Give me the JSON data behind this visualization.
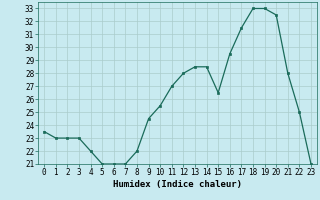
{
  "x": [
    0,
    1,
    2,
    3,
    4,
    5,
    6,
    7,
    8,
    9,
    10,
    11,
    12,
    13,
    14,
    15,
    16,
    17,
    18,
    19,
    20,
    21,
    22,
    23
  ],
  "y": [
    23.5,
    23.0,
    23.0,
    23.0,
    22.0,
    21.0,
    21.0,
    21.0,
    22.0,
    24.5,
    25.5,
    27.0,
    28.0,
    28.5,
    28.5,
    26.5,
    29.5,
    31.5,
    33.0,
    33.0,
    32.5,
    28.0,
    25.0,
    21.0
  ],
  "xlabel": "Humidex (Indice chaleur)",
  "ylabel": "",
  "xlim": [
    -0.5,
    23.5
  ],
  "ylim": [
    21,
    33.5
  ],
  "yticks": [
    21,
    22,
    23,
    24,
    25,
    26,
    27,
    28,
    29,
    30,
    31,
    32,
    33
  ],
  "xticks": [
    0,
    1,
    2,
    3,
    4,
    5,
    6,
    7,
    8,
    9,
    10,
    11,
    12,
    13,
    14,
    15,
    16,
    17,
    18,
    19,
    20,
    21,
    22,
    23
  ],
  "line_color": "#1a6b5a",
  "marker": "s",
  "marker_size": 2.0,
  "bg_color": "#c8eaf0",
  "grid_color": "#aacccc",
  "label_fontsize": 6.5,
  "tick_fontsize": 5.5
}
